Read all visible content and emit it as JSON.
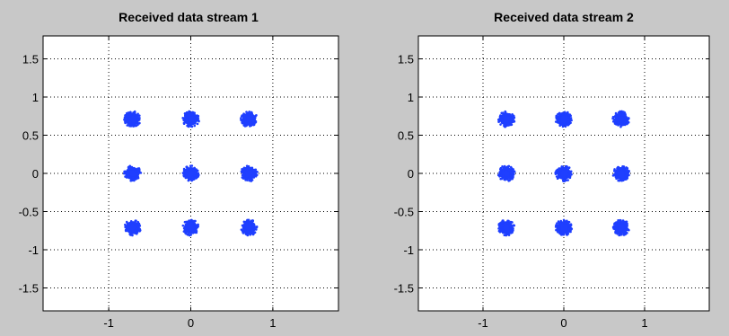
{
  "figure": {
    "background": "#c8c8c8",
    "marker_color": "#1f3fff"
  },
  "chart_data": [
    {
      "type": "scatter",
      "title": "Received data stream 1",
      "xlabel": "",
      "ylabel": "",
      "xlim": [
        -1.8,
        1.8
      ],
      "ylim": [
        -1.8,
        1.8
      ],
      "xticks": [
        -1,
        0,
        1
      ],
      "xtick_labels": [
        "-1",
        "0",
        "1"
      ],
      "yticks": [
        1.5,
        1,
        0.5,
        0,
        -0.5,
        -1,
        -1.5
      ],
      "ytick_labels": [
        "1.5",
        "1",
        "0.5",
        "0",
        "-0.5",
        "-1",
        "-1.5"
      ],
      "grid": true,
      "series": [
        {
          "points": [
            {
              "x": -0.71,
              "y": 0.71,
              "spread": 0.09
            },
            {
              "x": 0.0,
              "y": 0.71,
              "spread": 0.09
            },
            {
              "x": 0.71,
              "y": 0.71,
              "spread": 0.09
            },
            {
              "x": -0.71,
              "y": 0.0,
              "spread": 0.09
            },
            {
              "x": 0.0,
              "y": 0.0,
              "spread": 0.09
            },
            {
              "x": 0.71,
              "y": 0.0,
              "spread": 0.09
            },
            {
              "x": -0.71,
              "y": -0.71,
              "spread": 0.09
            },
            {
              "x": 0.0,
              "y": -0.71,
              "spread": 0.09
            },
            {
              "x": 0.71,
              "y": -0.71,
              "spread": 0.09
            }
          ]
        }
      ]
    },
    {
      "type": "scatter",
      "title": "Received data stream 2",
      "xlabel": "",
      "ylabel": "",
      "xlim": [
        -1.8,
        1.8
      ],
      "ylim": [
        -1.8,
        1.8
      ],
      "xticks": [
        -1,
        0,
        1
      ],
      "xtick_labels": [
        "-1",
        "0",
        "1"
      ],
      "yticks": [
        1.5,
        1,
        0.5,
        0,
        -0.5,
        -1,
        -1.5
      ],
      "ytick_labels": [
        "1.5",
        "1",
        "0.5",
        "0",
        "-0.5",
        "-1",
        "-1.5"
      ],
      "grid": true,
      "series": [
        {
          "points": [
            {
              "x": -0.71,
              "y": 0.71,
              "spread": 0.09
            },
            {
              "x": 0.0,
              "y": 0.71,
              "spread": 0.09
            },
            {
              "x": 0.71,
              "y": 0.71,
              "spread": 0.09
            },
            {
              "x": -0.71,
              "y": 0.0,
              "spread": 0.09
            },
            {
              "x": 0.0,
              "y": 0.0,
              "spread": 0.09
            },
            {
              "x": 0.71,
              "y": 0.0,
              "spread": 0.09
            },
            {
              "x": -0.71,
              "y": -0.71,
              "spread": 0.09
            },
            {
              "x": 0.0,
              "y": -0.71,
              "spread": 0.09
            },
            {
              "x": 0.71,
              "y": -0.71,
              "spread": 0.09
            }
          ]
        }
      ]
    }
  ]
}
